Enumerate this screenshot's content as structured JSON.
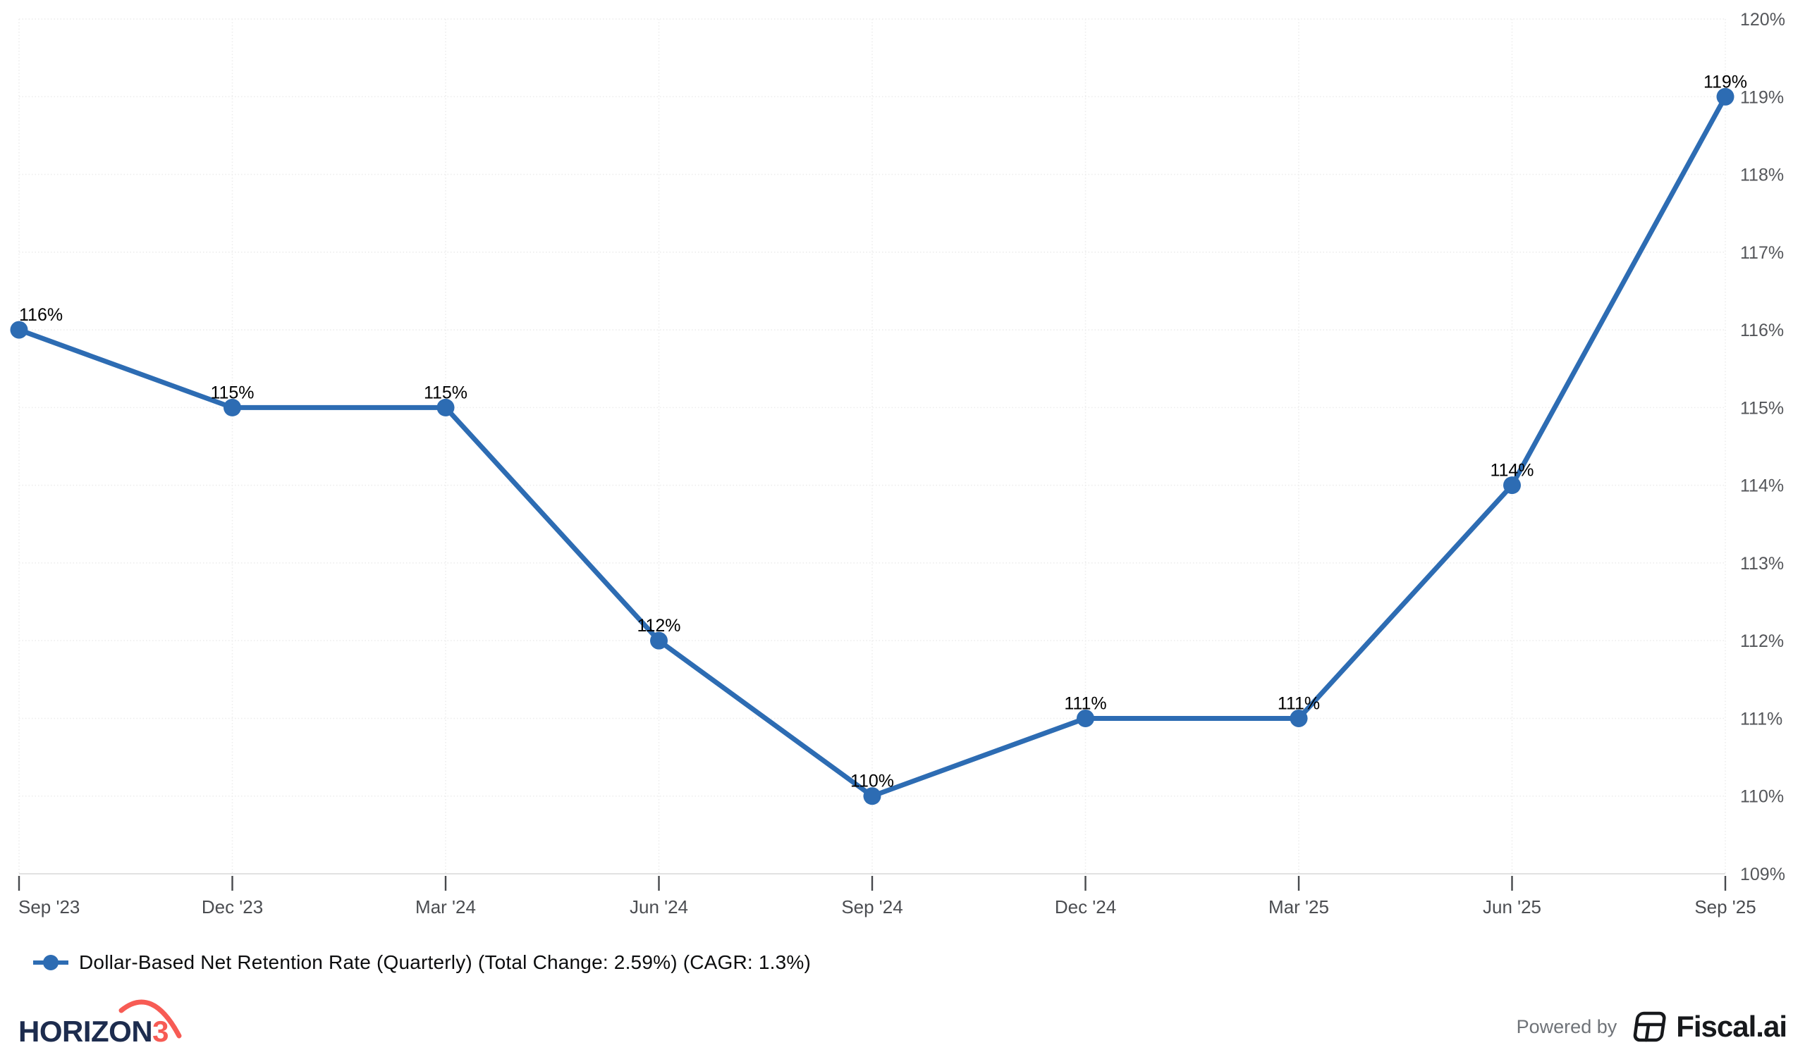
{
  "colors": {
    "line": "#2d6cb3",
    "data_label": "#000000",
    "y_axis_label": "#54565a",
    "x_axis_label": "#4b4d51",
    "grid": "#ececec",
    "axis_line": "#e2e2e2",
    "tick": "#47494d",
    "logo_navy": "#1d2c4e",
    "logo_coral": "#f75b54",
    "powered_by_gray": "#6f7378",
    "fiscal_dark": "#17191c"
  },
  "chart_data": {
    "type": "line",
    "title": "",
    "xlabel": "",
    "ylabel": "",
    "x": [
      "Sep '23",
      "Dec '23",
      "Mar '24",
      "Jun '24",
      "Sep '24",
      "Dec '24",
      "Mar '25",
      "Jun '25",
      "Sep '25"
    ],
    "series": [
      {
        "name": "Dollar-Based Net Retention Rate (Quarterly)",
        "values": [
          116,
          115,
          115,
          112,
          110,
          111,
          111,
          114,
          119
        ]
      }
    ],
    "point_labels": [
      "116%",
      "115%",
      "115%",
      "112%",
      "110%",
      "111%",
      "111%",
      "114%",
      "119%"
    ],
    "y_tick_labels": [
      "120%",
      "119%",
      "118%",
      "117%",
      "116%",
      "115%",
      "114%",
      "113%",
      "112%",
      "111%",
      "110%",
      "109%"
    ],
    "ylim": [
      109,
      120
    ],
    "grid": true,
    "legend_position": "bottom-left"
  },
  "legend": {
    "marker": "line-circle-marker",
    "label": "Dollar-Based Net Retention Rate (Quarterly) (Total Change: 2.59%) (CAGR: 1.3%)"
  },
  "footer": {
    "brand": {
      "name_main": "HORIZON",
      "name_digit": "3"
    },
    "powered_by_label": "Powered by",
    "fiscal_brand": "Fiscal.ai"
  }
}
